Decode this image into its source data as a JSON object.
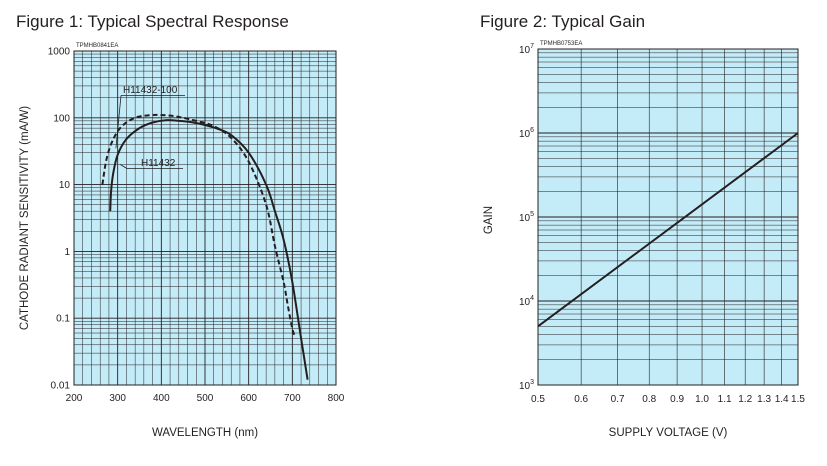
{
  "chart_data": [
    {
      "type": "line",
      "title": "Figure 1: Typical Spectral Response",
      "code": "TPMHB0841EA",
      "xlabel": "WAVELENGTH (nm)",
      "ylabel": "CATHODE RADIANT SENSITIVITY (mA/W)",
      "y_scale": "log",
      "xlim": [
        200,
        800
      ],
      "ylim": [
        0.01,
        1000
      ],
      "x_ticks": [
        "200",
        "300",
        "400",
        "500",
        "600",
        "700",
        "800"
      ],
      "y_ticks": [
        "1000",
        "100",
        "10",
        "1",
        "0.1",
        "0.01"
      ],
      "grid": true,
      "background": "#c4ecf8",
      "series": [
        {
          "name": "H11432-100",
          "style": "dashed",
          "x": [
            265,
            275,
            290,
            310,
            340,
            380,
            420,
            450,
            480,
            520,
            560,
            600,
            640,
            660,
            680,
            690,
            700,
            705
          ],
          "y": [
            10,
            25,
            48,
            75,
            100,
            110,
            108,
            100,
            90,
            75,
            50,
            22,
            5,
            1.2,
            0.35,
            0.15,
            0.07,
            0.055
          ]
        },
        {
          "name": "H11432",
          "style": "solid",
          "x": [
            283,
            285,
            290,
            300,
            320,
            350,
            380,
            410,
            440,
            470,
            500,
            530,
            560,
            600,
            640,
            660,
            680,
            700,
            720,
            735
          ],
          "y": [
            4,
            8,
            15,
            28,
            48,
            70,
            85,
            92,
            90,
            86,
            78,
            68,
            55,
            30,
            10,
            4,
            1.5,
            0.35,
            0.05,
            0.012
          ]
        }
      ],
      "annotations": [
        "H11432-100",
        "H11432"
      ]
    },
    {
      "type": "line",
      "title": "Figure 2: Typical Gain",
      "code": "TPMHB0753EA",
      "xlabel": "SUPPLY VOLTAGE (V)",
      "ylabel": "GAIN",
      "x_scale": "log",
      "y_scale": "log",
      "xlim": [
        0.5,
        1.5
      ],
      "ylim": [
        1000,
        10000000
      ],
      "x_ticks": [
        "0.5",
        "0.6",
        "0.7",
        "0.8",
        "0.9",
        "1.0",
        "1.1",
        "1.2",
        "1.3",
        "1.4",
        "1.5"
      ],
      "y_ticks": [
        {
          "base": "10",
          "exp": "7"
        },
        {
          "base": "10",
          "exp": "6"
        },
        {
          "base": "10",
          "exp": "5"
        },
        {
          "base": "10",
          "exp": "4"
        },
        {
          "base": "10",
          "exp": "3"
        }
      ],
      "grid": true,
      "background": "#c4ecf8",
      "series": [
        {
          "name": "Gain",
          "style": "solid",
          "x": [
            0.5,
            1.5
          ],
          "y": [
            5000,
            1000000
          ]
        }
      ]
    }
  ]
}
